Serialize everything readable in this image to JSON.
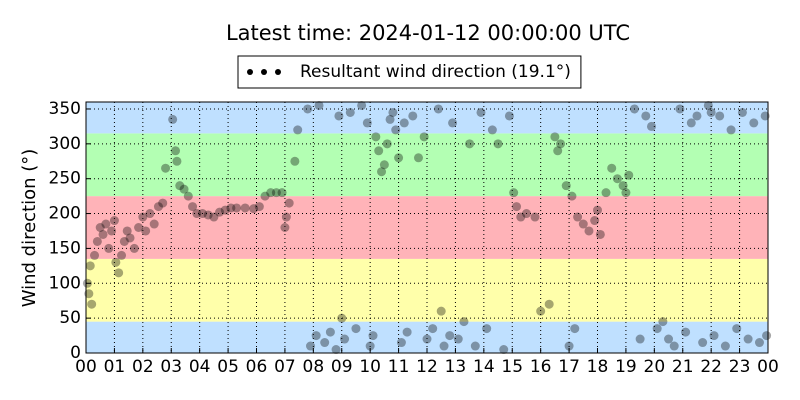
{
  "chart_data": {
    "type": "scatter",
    "title": "Latest time: 2024-01-12 00:00:00 UTC",
    "y_label": "Wind direction (°)",
    "xlim": [
      0,
      24
    ],
    "ylim": [
      0,
      360
    ],
    "xticks": [
      {
        "value": 0,
        "label": "00"
      },
      {
        "value": 1,
        "label": "01"
      },
      {
        "value": 2,
        "label": "02"
      },
      {
        "value": 3,
        "label": "03"
      },
      {
        "value": 4,
        "label": "04"
      },
      {
        "value": 5,
        "label": "05"
      },
      {
        "value": 6,
        "label": "06"
      },
      {
        "value": 7,
        "label": "07"
      },
      {
        "value": 8,
        "label": "08"
      },
      {
        "value": 9,
        "label": "09"
      },
      {
        "value": 10,
        "label": "10"
      },
      {
        "value": 11,
        "label": "11"
      },
      {
        "value": 12,
        "label": "12"
      },
      {
        "value": 13,
        "label": "13"
      },
      {
        "value": 14,
        "label": "14"
      },
      {
        "value": 15,
        "label": "15"
      },
      {
        "value": 16,
        "label": "16"
      },
      {
        "value": 17,
        "label": "17"
      },
      {
        "value": 18,
        "label": "18"
      },
      {
        "value": 19,
        "label": "19"
      },
      {
        "value": 20,
        "label": "20"
      },
      {
        "value": 21,
        "label": "21"
      },
      {
        "value": 22,
        "label": "22"
      },
      {
        "value": 23,
        "label": "23"
      },
      {
        "value": 24,
        "label": "00"
      }
    ],
    "yticks": [
      0,
      50,
      100,
      150,
      200,
      250,
      300,
      350
    ],
    "grid": true,
    "legend": "upper center",
    "bands": [
      {
        "from": 0,
        "to": 45,
        "color": "#bfe0ff"
      },
      {
        "from": 45,
        "to": 135,
        "color": "#ffffaa"
      },
      {
        "from": 135,
        "to": 225,
        "color": "#ffb3b8"
      },
      {
        "from": 225,
        "to": 315,
        "color": "#b3ffb3"
      },
      {
        "from": 315,
        "to": 360,
        "color": "#bfe0ff"
      }
    ],
    "series": [
      {
        "name": "Resultant wind direction (19.1°)",
        "color": "#000000",
        "alpha": 0.35,
        "x": [
          0.05,
          0.1,
          0.15,
          0.2,
          0.3,
          0.4,
          0.5,
          0.6,
          0.7,
          0.8,
          0.9,
          1.0,
          1.05,
          1.15,
          1.25,
          1.35,
          1.45,
          1.55,
          1.7,
          1.85,
          2.0,
          2.1,
          2.25,
          2.4,
          2.55,
          2.7,
          2.8,
          3.05,
          3.15,
          3.2,
          3.3,
          3.45,
          3.6,
          3.75,
          3.9,
          4.1,
          4.3,
          4.5,
          4.7,
          4.9,
          5.1,
          5.3,
          5.6,
          5.9,
          6.1,
          6.3,
          6.5,
          6.7,
          6.9,
          7.0,
          7.05,
          7.15,
          7.35,
          7.45,
          7.8,
          7.9,
          8.1,
          8.2,
          8.4,
          8.6,
          8.8,
          8.9,
          9.1,
          9.3,
          9.5,
          9.7,
          9.9,
          10.0,
          10.1,
          10.2,
          10.3,
          10.4,
          10.5,
          10.6,
          10.7,
          10.8,
          10.9,
          11.0,
          11.1,
          11.2,
          11.3,
          11.5,
          11.7,
          11.9,
          12.0,
          12.2,
          12.4,
          12.6,
          12.8,
          12.9,
          13.1,
          13.3,
          13.5,
          13.7,
          13.9,
          14.1,
          14.3,
          14.5,
          14.7,
          14.9,
          15.05,
          15.15,
          15.3,
          15.5,
          15.8,
          16.0,
          16.3,
          16.5,
          16.6,
          16.7,
          16.9,
          17.0,
          17.1,
          17.2,
          17.3,
          17.5,
          17.7,
          17.9,
          18.0,
          18.1,
          18.3,
          18.5,
          18.7,
          18.9,
          19.0,
          19.1,
          19.3,
          19.5,
          19.7,
          19.9,
          20.1,
          20.3,
          20.5,
          20.7,
          20.9,
          21.1,
          21.3,
          21.5,
          21.7,
          21.9,
          22.1,
          22.3,
          22.5,
          22.7,
          22.9,
          23.1,
          23.3,
          23.5,
          23.7,
          23.9,
          23.95,
          22.0,
          9.0,
          12.5
        ],
        "values": [
          100,
          85,
          125,
          70,
          140,
          160,
          180,
          170,
          185,
          150,
          175,
          190,
          130,
          115,
          140,
          160,
          175,
          165,
          150,
          180,
          195,
          175,
          200,
          185,
          210,
          215,
          265,
          335,
          290,
          275,
          240,
          235,
          225,
          210,
          200,
          200,
          198,
          195,
          202,
          205,
          208,
          208,
          208,
          207,
          210,
          225,
          230,
          230,
          230,
          180,
          195,
          215,
          275,
          320,
          350,
          10,
          25,
          355,
          15,
          30,
          5,
          340,
          20,
          345,
          35,
          355,
          330,
          10,
          25,
          310,
          290,
          260,
          270,
          300,
          335,
          345,
          320,
          280,
          15,
          330,
          30,
          340,
          280,
          310,
          20,
          35,
          350,
          10,
          25,
          330,
          20,
          45,
          300,
          10,
          345,
          35,
          320,
          300,
          5,
          340,
          230,
          210,
          195,
          200,
          195,
          60,
          70,
          310,
          290,
          300,
          240,
          10,
          225,
          35,
          195,
          185,
          175,
          190,
          205,
          170,
          230,
          265,
          250,
          240,
          230,
          255,
          350,
          20,
          340,
          325,
          35,
          45,
          20,
          10,
          350,
          30,
          330,
          340,
          15,
          355,
          25,
          340,
          10,
          320,
          35,
          345,
          20,
          330,
          15,
          340,
          25,
          345,
          50,
          60
        ]
      }
    ]
  }
}
